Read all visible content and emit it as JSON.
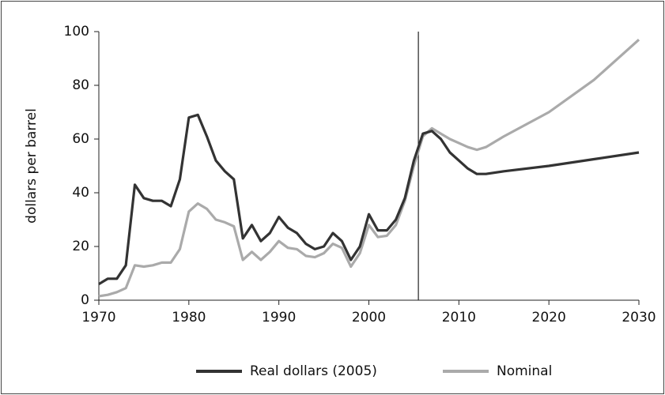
{
  "chart_data": {
    "type": "line",
    "ylabel": "dollars per barrel",
    "x": [
      1970,
      1971,
      1972,
      1973,
      1974,
      1975,
      1976,
      1977,
      1978,
      1979,
      1980,
      1981,
      1982,
      1983,
      1984,
      1985,
      1986,
      1987,
      1988,
      1989,
      1990,
      1991,
      1992,
      1993,
      1994,
      1995,
      1996,
      1997,
      1998,
      1999,
      2000,
      2001,
      2002,
      2003,
      2004,
      2005,
      2006,
      2007,
      2008,
      2009,
      2010,
      2011,
      2012,
      2013,
      2015,
      2020,
      2025,
      2030
    ],
    "series": [
      {
        "name": "Real dollars (2005)",
        "color": "#333333",
        "values": [
          6,
          8,
          8,
          13,
          43,
          38,
          37,
          37,
          35,
          45,
          68,
          69,
          61,
          52,
          48,
          45,
          23,
          28,
          22,
          25,
          31,
          27,
          25,
          21,
          19,
          20,
          25,
          22,
          15,
          20,
          32,
          26,
          26,
          30,
          38,
          52,
          62,
          63,
          60,
          55,
          52,
          49,
          47,
          47,
          48,
          50,
          52.5,
          55
        ]
      },
      {
        "name": "Nominal",
        "color": "#aaaaaa",
        "values": [
          1.5,
          2,
          3,
          4.5,
          13,
          12.5,
          13,
          14,
          14,
          19,
          33,
          36,
          34,
          30,
          29,
          27.5,
          15,
          18,
          15,
          18,
          22,
          19.5,
          19,
          16.5,
          16,
          17.5,
          21,
          19.5,
          12.5,
          17.5,
          28,
          23.5,
          24,
          28,
          37,
          50,
          61,
          64,
          62,
          60,
          58.5,
          57,
          56,
          57,
          61,
          70,
          82,
          97
        ]
      }
    ],
    "vline": 2005.5,
    "xlim": [
      1970,
      2030
    ],
    "xticks": [
      1970,
      1980,
      1990,
      2000,
      2010,
      2020,
      2030
    ],
    "ylim": [
      0,
      100
    ],
    "yticks": [
      0,
      20,
      40,
      60,
      80,
      100
    ],
    "grid": false,
    "legend": "bottom"
  }
}
